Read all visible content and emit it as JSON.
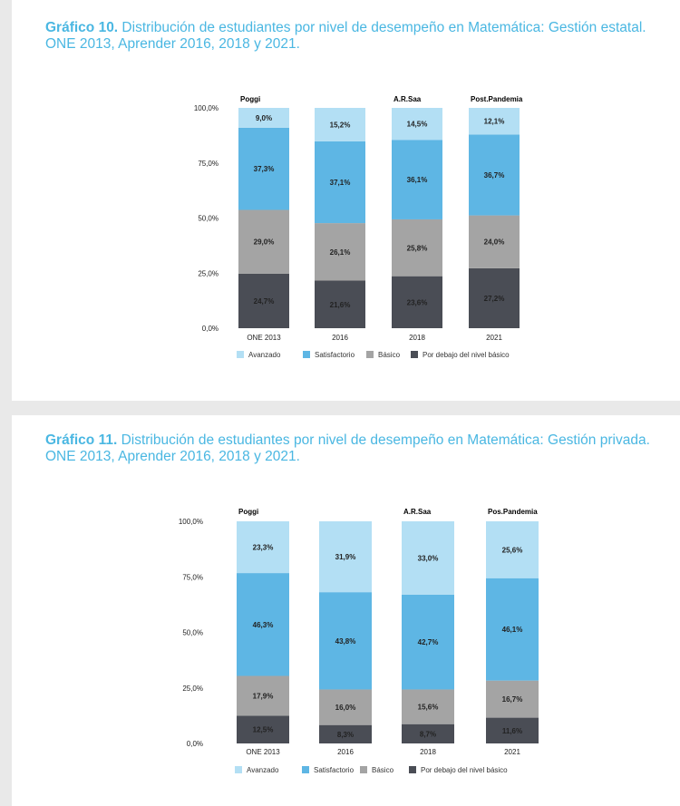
{
  "colors": {
    "avanzado": "#b3dff4",
    "satisfactorio": "#5eb6e4",
    "basico": "#a4a4a4",
    "debajo": "#4a4d55"
  },
  "chart_data": [
    {
      "type": "bar",
      "stacked": true,
      "title_bold": "Gráfico 10.",
      "title_rest": " Distribución de estudiantes por nivel de desempeño en Matemática: Gestión estatal. ONE 2013, Aprender 2016, 2018 y 2021.",
      "categories": [
        "ONE 2013",
        "2016",
        "2018",
        "2021"
      ],
      "annotations": [
        "Poggi",
        "",
        "A.R.Saa",
        "Post.Pandemia"
      ],
      "yticks": [
        "0,0%",
        "25,0%",
        "50,0%",
        "75,0%",
        "100,0%"
      ],
      "ylim": [
        0,
        100
      ],
      "series": [
        {
          "name": "Por debajo del nivel básico",
          "key": "debajo",
          "values": [
            24.7,
            21.6,
            23.6,
            27.2
          ],
          "labels": [
            "24,7%",
            "21,6%",
            "23,6%",
            "27,2%"
          ]
        },
        {
          "name": "Básico",
          "key": "basico",
          "values": [
            29.0,
            26.1,
            25.8,
            24.0
          ],
          "labels": [
            "29,0%",
            "26,1%",
            "25,8%",
            "24,0%"
          ]
        },
        {
          "name": "Satisfactorio",
          "key": "satisfactorio",
          "values": [
            37.3,
            37.1,
            36.1,
            36.7
          ],
          "labels": [
            "37,3%",
            "37,1%",
            "36,1%",
            "36,7%"
          ]
        },
        {
          "name": "Avanzado",
          "key": "avanzado",
          "values": [
            9.0,
            15.2,
            14.5,
            12.1
          ],
          "labels": [
            "9,0%",
            "15,2%",
            "14,5%",
            "12,1%"
          ]
        }
      ],
      "legend": [
        "Avanzado",
        "Satisfactorio",
        "Básico",
        "Por debajo del nivel básico"
      ]
    },
    {
      "type": "bar",
      "stacked": true,
      "title_bold": "Gráfico 11.",
      "title_rest": " Distribución de estudiantes por nivel de desempeño en Matemática: Gestión privada. ONE 2013, Aprender 2016, 2018 y 2021.",
      "categories": [
        "ONE 2013",
        "2016",
        "2018",
        "2021"
      ],
      "annotations": [
        "Poggi",
        "",
        "A.R.Saa",
        "Pos.Pandemia"
      ],
      "yticks": [
        "0,0%",
        "25,0%",
        "50,0%",
        "75,0%",
        "100,0%"
      ],
      "ylim": [
        0,
        100
      ],
      "series": [
        {
          "name": "Por debajo del nivel básico",
          "key": "debajo",
          "values": [
            12.5,
            8.3,
            8.7,
            11.6
          ],
          "labels": [
            "12,5%",
            "8,3%",
            "8,7%",
            "11,6%"
          ]
        },
        {
          "name": "Básico",
          "key": "basico",
          "values": [
            17.9,
            16.0,
            15.6,
            16.7
          ],
          "labels": [
            "17,9%",
            "16,0%",
            "15,6%",
            "16,7%"
          ]
        },
        {
          "name": "Satisfactorio",
          "key": "satisfactorio",
          "values": [
            46.3,
            43.8,
            42.7,
            46.1
          ],
          "labels": [
            "46,3%",
            "43,8%",
            "42,7%",
            "46,1%"
          ]
        },
        {
          "name": "Avanzado",
          "key": "avanzado",
          "values": [
            23.3,
            31.9,
            33.0,
            25.6
          ],
          "labels": [
            "23,3%",
            "31,9%",
            "33,0%",
            "25,6%"
          ]
        }
      ],
      "legend": [
        "Avanzado",
        "Satisfactorio",
        "Básico",
        "Por debajo del nivel básico"
      ]
    }
  ]
}
